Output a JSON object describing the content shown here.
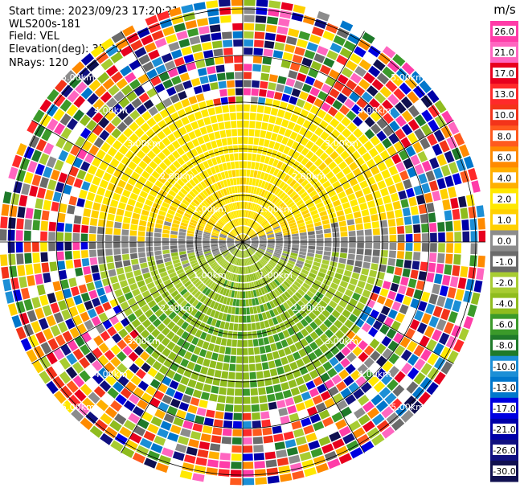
{
  "info": {
    "start_time": "Start time: 2023/09/23 17:20:21",
    "instrument": "WLS200s-181",
    "field": "Field: VEL",
    "elevation": "Elevation(deg): 35.30",
    "nrays": "NRays: 120"
  },
  "chart_data": {
    "type": "heatmap",
    "projection": "polar PPI",
    "field": "VEL",
    "n_rays": 120,
    "elevation_deg": 35.3,
    "range_rings_km": [
      1.0,
      2.0,
      3.0,
      4.0,
      5.0
    ],
    "ring_labels": [
      "1.00km",
      "2.00km",
      "3.00km",
      "4.00km",
      "5.00km"
    ],
    "azimuth_lines_deg": [
      0,
      30,
      60,
      90,
      120,
      150,
      180,
      210,
      240,
      270,
      300,
      330
    ],
    "colorbar": {
      "unit": "m/s",
      "tick_labels": [
        "26.0",
        "21.0",
        "17.0",
        "13.0",
        "10.0",
        "8.0",
        "6.0",
        "4.0",
        "2.0",
        "1.0",
        "0.0",
        "-1.0",
        "-2.0",
        "-4.0",
        "-6.0",
        "-8.0",
        "-10.0",
        "-13.0",
        "-17.0",
        "-21.0",
        "-26.0",
        "-30.0"
      ],
      "colors": [
        "#ff3da8",
        "#ff66c0",
        "#e8001e",
        "#ff2a2a",
        "#f3341a",
        "#ff5a1e",
        "#ff8a00",
        "#ffb000",
        "#ffe800",
        "#ffd000",
        "#8c8c8c",
        "#6b6b6b",
        "#a8cc32",
        "#8fbc1e",
        "#3b9a2a",
        "#1f7a2a",
        "#1c8fd6",
        "#0077cc",
        "#0000e0",
        "#0000a8",
        "#101080",
        "#101050"
      ]
    }
  }
}
